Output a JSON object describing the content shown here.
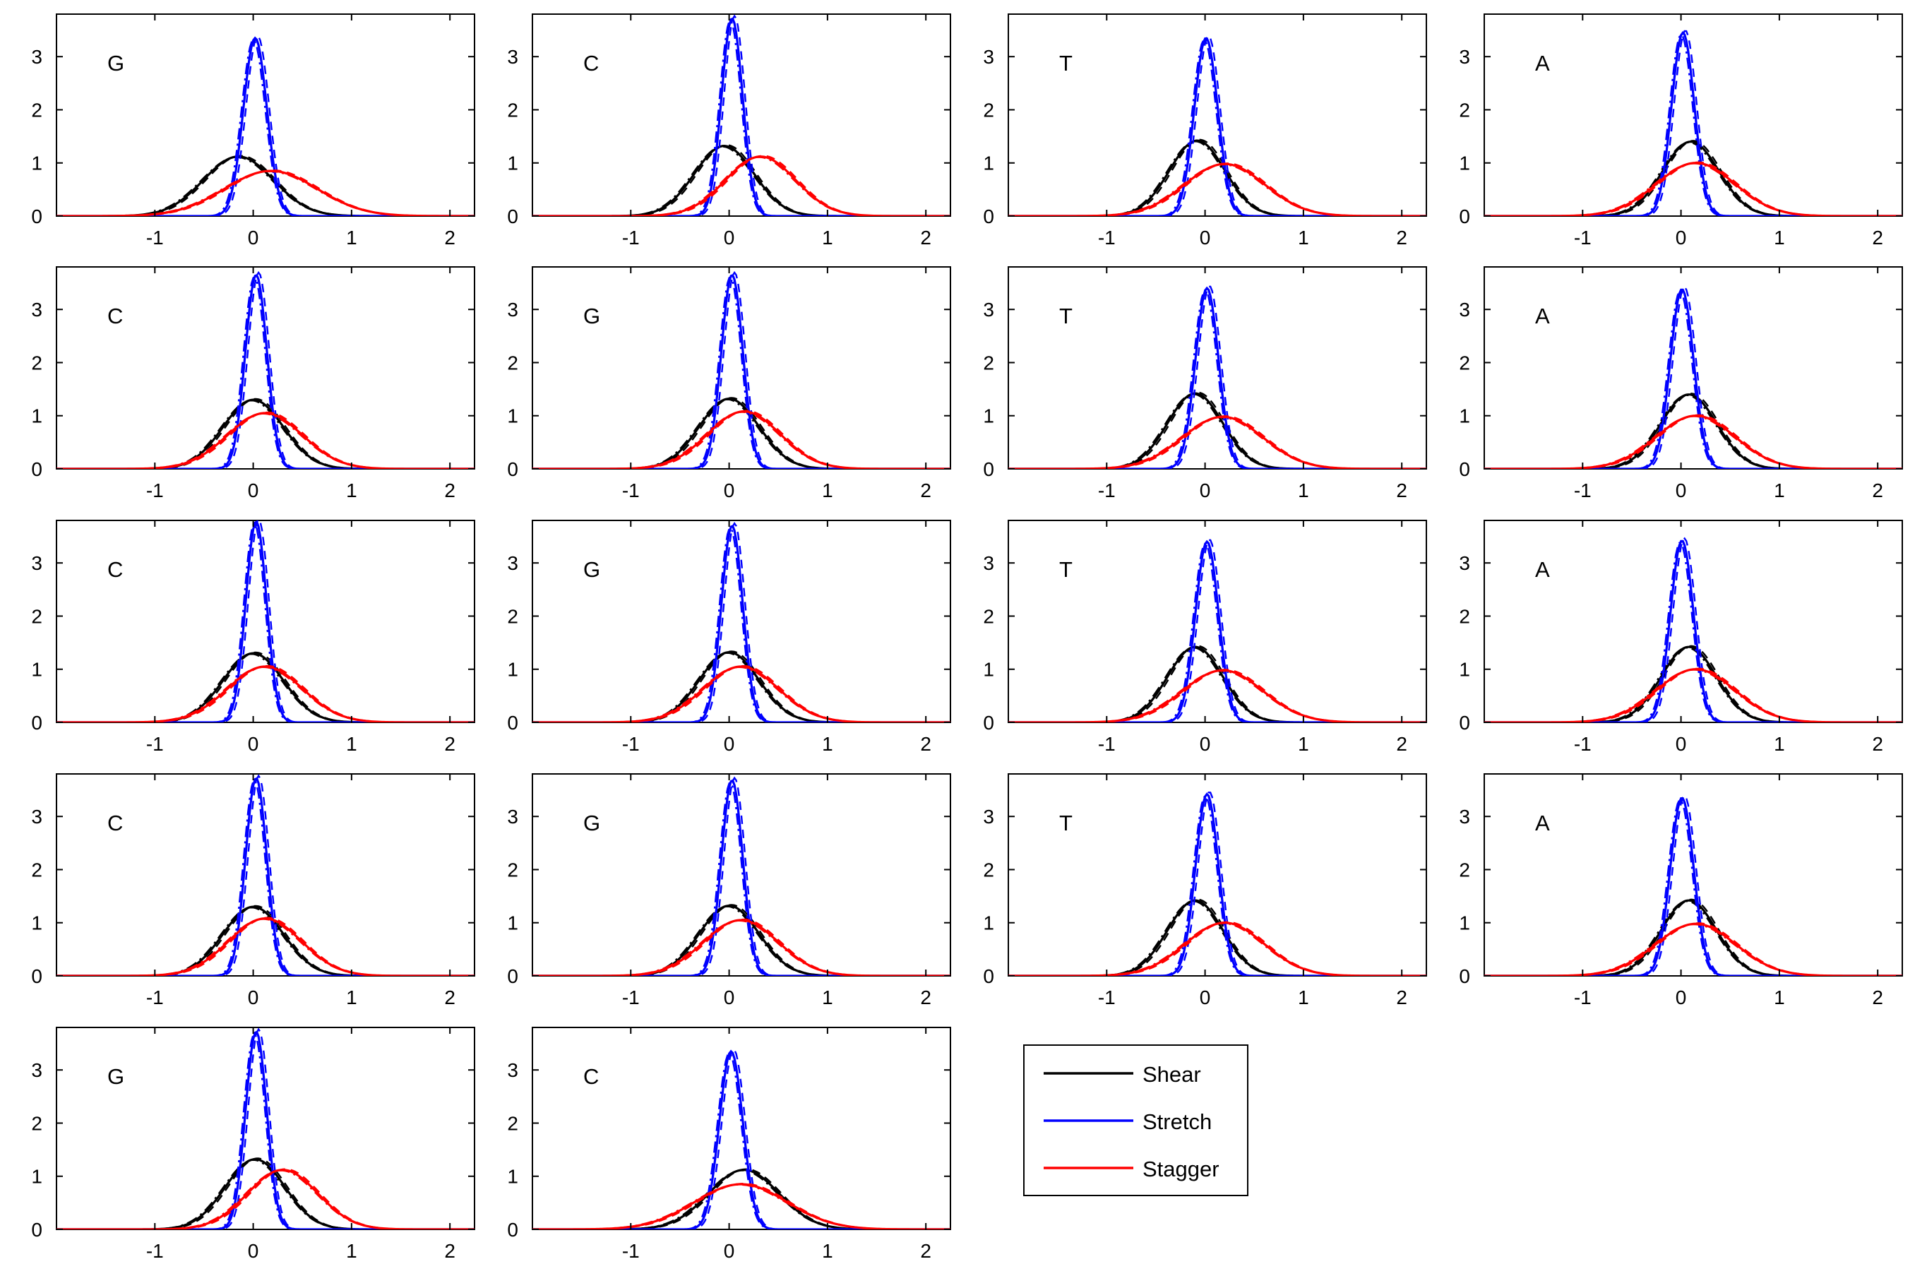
{
  "chart_data": {
    "type": "line",
    "layout": {
      "rows": 5,
      "cols": 4
    },
    "xlim": [
      -2,
      2.25
    ],
    "ylim": [
      0,
      3.8
    ],
    "x_ticks": [
      -1,
      0,
      1,
      2
    ],
    "y_ticks": [
      0,
      1,
      2,
      3
    ],
    "grid": false,
    "legend": {
      "placement": "row-5-col-3",
      "entries": [
        {
          "name": "Shear",
          "color": "#000000"
        },
        {
          "name": "Stretch",
          "color": "#0000ff"
        },
        {
          "name": "Stagger",
          "color": "#ff0000"
        }
      ]
    },
    "series_colors": {
      "shear": "#000000",
      "stretch": "#0000ff",
      "stagger": "#ff0000"
    },
    "line_styles": [
      "solid",
      "dashed",
      "dashdot"
    ],
    "panels": [
      {
        "label": "G",
        "row": 0,
        "col": 0,
        "shear": {
          "mu": -0.15,
          "peak": 1.12
        },
        "stretch": {
          "mu": 0.02,
          "peak": 3.35
        },
        "stagger": {
          "mu": 0.18,
          "peak": 0.85
        }
      },
      {
        "label": "C",
        "row": 0,
        "col": 1,
        "shear": {
          "mu": -0.05,
          "peak": 1.32
        },
        "stretch": {
          "mu": 0.03,
          "peak": 3.72
        },
        "stagger": {
          "mu": 0.32,
          "peak": 1.12
        }
      },
      {
        "label": "T",
        "row": 0,
        "col": 2,
        "shear": {
          "mu": -0.08,
          "peak": 1.42
        },
        "stretch": {
          "mu": 0.01,
          "peak": 3.35
        },
        "stagger": {
          "mu": 0.2,
          "peak": 0.98
        }
      },
      {
        "label": "A",
        "row": 0,
        "col": 3,
        "shear": {
          "mu": 0.1,
          "peak": 1.4
        },
        "stretch": {
          "mu": 0.02,
          "peak": 3.45
        },
        "stagger": {
          "mu": 0.15,
          "peak": 1.0
        }
      },
      {
        "label": "C",
        "row": 1,
        "col": 0,
        "shear": {
          "mu": 0.0,
          "peak": 1.3
        },
        "stretch": {
          "mu": 0.03,
          "peak": 3.65
        },
        "stagger": {
          "mu": 0.12,
          "peak": 1.05
        }
      },
      {
        "label": "G",
        "row": 1,
        "col": 1,
        "shear": {
          "mu": 0.0,
          "peak": 1.32
        },
        "stretch": {
          "mu": 0.03,
          "peak": 3.65
        },
        "stagger": {
          "mu": 0.15,
          "peak": 1.08
        }
      },
      {
        "label": "T",
        "row": 1,
        "col": 2,
        "shear": {
          "mu": -0.1,
          "peak": 1.42
        },
        "stretch": {
          "mu": 0.02,
          "peak": 3.4
        },
        "stagger": {
          "mu": 0.18,
          "peak": 0.98
        }
      },
      {
        "label": "A",
        "row": 1,
        "col": 3,
        "shear": {
          "mu": 0.08,
          "peak": 1.4
        },
        "stretch": {
          "mu": 0.01,
          "peak": 3.38
        },
        "stagger": {
          "mu": 0.15,
          "peak": 1.0
        }
      },
      {
        "label": "C",
        "row": 2,
        "col": 0,
        "shear": {
          "mu": 0.0,
          "peak": 1.3
        },
        "stretch": {
          "mu": 0.03,
          "peak": 3.78
        },
        "stagger": {
          "mu": 0.12,
          "peak": 1.05
        }
      },
      {
        "label": "G",
        "row": 2,
        "col": 1,
        "shear": {
          "mu": 0.0,
          "peak": 1.32
        },
        "stretch": {
          "mu": 0.03,
          "peak": 3.7
        },
        "stagger": {
          "mu": 0.12,
          "peak": 1.05
        }
      },
      {
        "label": "T",
        "row": 2,
        "col": 2,
        "shear": {
          "mu": -0.1,
          "peak": 1.42
        },
        "stretch": {
          "mu": 0.02,
          "peak": 3.4
        },
        "stagger": {
          "mu": 0.18,
          "peak": 0.98
        }
      },
      {
        "label": "A",
        "row": 2,
        "col": 3,
        "shear": {
          "mu": 0.08,
          "peak": 1.42
        },
        "stretch": {
          "mu": 0.01,
          "peak": 3.42
        },
        "stagger": {
          "mu": 0.15,
          "peak": 1.0
        }
      },
      {
        "label": "C",
        "row": 3,
        "col": 0,
        "shear": {
          "mu": 0.0,
          "peak": 1.3
        },
        "stretch": {
          "mu": 0.03,
          "peak": 3.72
        },
        "stagger": {
          "mu": 0.12,
          "peak": 1.08
        }
      },
      {
        "label": "G",
        "row": 3,
        "col": 1,
        "shear": {
          "mu": 0.0,
          "peak": 1.32
        },
        "stretch": {
          "mu": 0.03,
          "peak": 3.68
        },
        "stagger": {
          "mu": 0.12,
          "peak": 1.05
        }
      },
      {
        "label": "T",
        "row": 3,
        "col": 2,
        "shear": {
          "mu": -0.1,
          "peak": 1.42
        },
        "stretch": {
          "mu": 0.02,
          "peak": 3.42
        },
        "stagger": {
          "mu": 0.2,
          "peak": 1.0
        }
      },
      {
        "label": "A",
        "row": 3,
        "col": 3,
        "shear": {
          "mu": 0.08,
          "peak": 1.42
        },
        "stretch": {
          "mu": 0.01,
          "peak": 3.35
        },
        "stagger": {
          "mu": 0.15,
          "peak": 0.98
        }
      },
      {
        "label": "G",
        "row": 4,
        "col": 0,
        "shear": {
          "mu": 0.02,
          "peak": 1.32
        },
        "stretch": {
          "mu": 0.03,
          "peak": 3.72
        },
        "stagger": {
          "mu": 0.3,
          "peak": 1.12
        }
      },
      {
        "label": "C",
        "row": 4,
        "col": 1,
        "shear": {
          "mu": 0.15,
          "peak": 1.12
        },
        "stretch": {
          "mu": 0.02,
          "peak": 3.35
        },
        "stagger": {
          "mu": 0.12,
          "peak": 0.85
        }
      }
    ]
  }
}
